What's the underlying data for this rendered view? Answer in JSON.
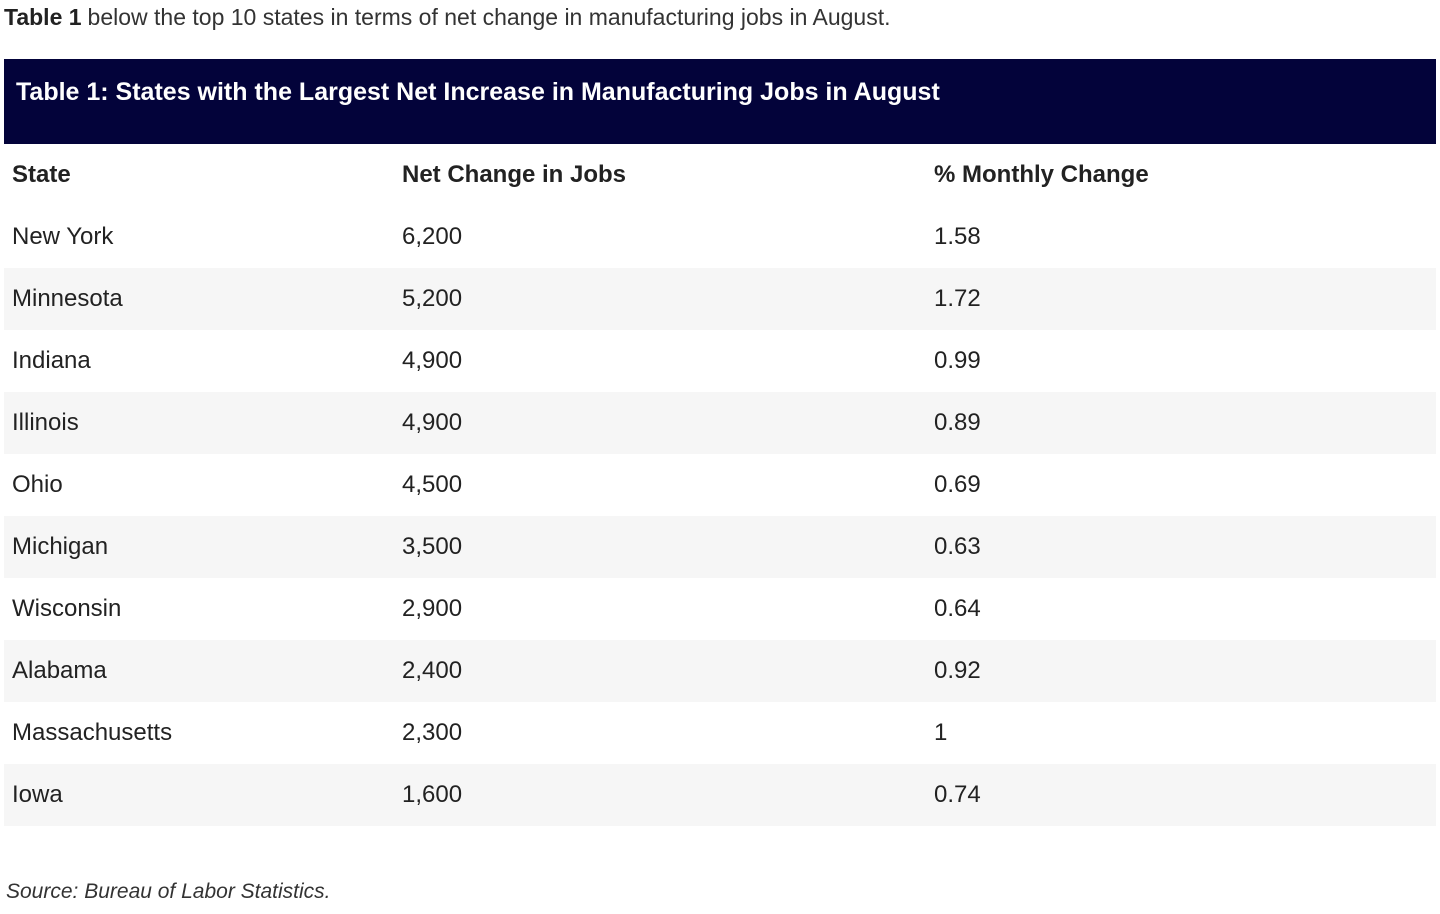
{
  "intro": {
    "bold": "Table 1",
    "text": "below the top 10 states in terms of net change in manufacturing jobs in August."
  },
  "table": {
    "title": "Table 1: States with the Largest Net Increase in Manufacturing Jobs in August",
    "headers": [
      "State",
      "Net Change in Jobs",
      "% Monthly Change"
    ],
    "rows": [
      [
        "New York",
        "6,200",
        "1.58"
      ],
      [
        "Minnesota",
        "5,200",
        "1.72"
      ],
      [
        "Indiana",
        "4,900",
        "0.99"
      ],
      [
        "Illinois",
        "4,900",
        "0.89"
      ],
      [
        "Ohio",
        "4,500",
        "0.69"
      ],
      [
        "Michigan",
        "3,500",
        "0.63"
      ],
      [
        "Wisconsin",
        "2,900",
        "0.64"
      ],
      [
        "Alabama",
        "2,400",
        "0.92"
      ],
      [
        "Massachusetts",
        "2,300",
        "1"
      ],
      [
        "Iowa",
        "1,600",
        "0.74"
      ]
    ]
  },
  "source": "Source: Bureau of Labor Statistics."
}
